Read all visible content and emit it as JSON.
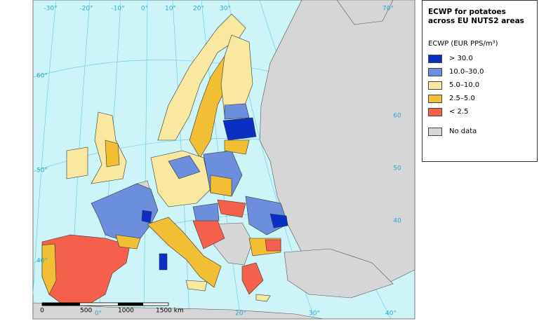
{
  "map": {
    "graticule_labels": {
      "top": [
        "-30°",
        "-20°",
        "-10°",
        "0°",
        "10°",
        "20°",
        "30°",
        "70°"
      ],
      "left": [
        "60°",
        "50°",
        "40°"
      ],
      "right": [
        "60",
        "50",
        "40"
      ],
      "bottom": [
        "0°",
        "20°",
        "30°",
        "40°"
      ]
    },
    "scale_bar": [
      "0",
      "500",
      "1000",
      "1500 km"
    ]
  },
  "legend": {
    "title": "ECWP for potatoes across EU NUTS2 areas",
    "unit_label": "ECWP (EUR PPS/m³)",
    "items": [
      {
        "label": "> 30.0",
        "color": "#0a2fc4"
      },
      {
        "label": "10.0–30.0",
        "color": "#6b8fdd"
      },
      {
        "label": "5.0–10.0",
        "color": "#f9e8a0"
      },
      {
        "label": "2.5–5.0",
        "color": "#f2be34"
      },
      {
        "label": "< 2.5",
        "color": "#f4604b"
      },
      {
        "label": "No data",
        "color": "#d6d6d6"
      }
    ]
  }
}
